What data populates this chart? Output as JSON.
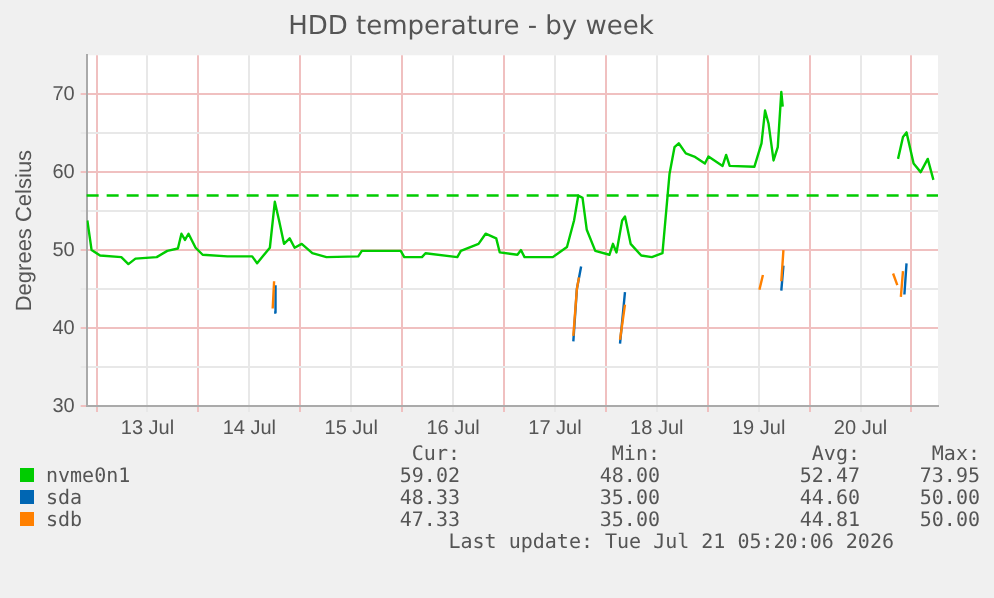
{
  "chart_data": {
    "type": "line",
    "title": "HDD temperature - by week",
    "ylabel": "Degrees Celsius",
    "xlim": [
      "2026-07-12T21:40",
      "2026-07-21T06:15"
    ],
    "xticks": [
      {
        "value": "2026-07-13T00:00",
        "label": null
      },
      {
        "value": "2026-07-13T12:00",
        "label": "13 Jul"
      },
      {
        "value": "2026-07-14T00:00",
        "label": null
      },
      {
        "value": "2026-07-14T12:00",
        "label": "14 Jul"
      },
      {
        "value": "2026-07-15T00:00",
        "label": null
      },
      {
        "value": "2026-07-15T12:00",
        "label": "15 Jul"
      },
      {
        "value": "2026-07-16T00:00",
        "label": null
      },
      {
        "value": "2026-07-16T12:00",
        "label": "16 Jul"
      },
      {
        "value": "2026-07-17T00:00",
        "label": null
      },
      {
        "value": "2026-07-17T12:00",
        "label": "17 Jul"
      },
      {
        "value": "2026-07-18T00:00",
        "label": null
      },
      {
        "value": "2026-07-18T12:00",
        "label": "18 Jul"
      },
      {
        "value": "2026-07-19T00:00",
        "label": null
      },
      {
        "value": "2026-07-19T12:00",
        "label": "19 Jul"
      },
      {
        "value": "2026-07-20T00:00",
        "label": null
      },
      {
        "value": "2026-07-20T12:00",
        "label": "20 Jul"
      },
      {
        "value": "2026-07-21T00:00",
        "label": null
      }
    ],
    "ylim": [
      30,
      75
    ],
    "yticks": [
      30,
      {
        "value": 35,
        "label": null
      },
      40,
      {
        "value": 45,
        "label": null
      },
      50,
      {
        "value": 55,
        "label": null
      },
      60,
      {
        "value": 65,
        "label": null
      },
      70
    ],
    "grid": true,
    "legend": "bottom",
    "marker": "none",
    "line_style": "solid",
    "ref_lines": [
      {
        "axis": "y",
        "value": 57,
        "color": "#00cc00",
        "line_style": "dashed"
      }
    ],
    "series": [
      {
        "name": "nvme0n1",
        "color": "#00cc00",
        "x": [
          "2026-07-12T21:50",
          "2026-07-12T22:50",
          "2026-07-13T00:50",
          "2026-07-13T05:50",
          "2026-07-13T07:30",
          "2026-07-13T09:10",
          "2026-07-13T14:10",
          "2026-07-13T16:40",
          "2026-07-13T19:10",
          "2026-07-13T20:00",
          "2026-07-13T20:50",
          "2026-07-13T21:40",
          "2026-07-13T23:20",
          "2026-07-14T01:00",
          "2026-07-14T06:50",
          "2026-07-14T12:40",
          "2026-07-14T13:50",
          "2026-07-14T15:10",
          "2026-07-14T16:50",
          "2026-07-14T18:00",
          "2026-07-14T19:00",
          "2026-07-14T20:10",
          "2026-07-14T21:30",
          "2026-07-14T22:40",
          "2026-07-15T00:20",
          "2026-07-15T02:50",
          "2026-07-15T06:10",
          "2026-07-15T13:40",
          "2026-07-15T14:30",
          "2026-07-15T23:40",
          "2026-07-16T00:30",
          "2026-07-16T04:40",
          "2026-07-16T05:30",
          "2026-07-16T13:00",
          "2026-07-16T13:50",
          "2026-07-16T18:00",
          "2026-07-16T19:40",
          "2026-07-16T22:10",
          "2026-07-16T23:00",
          "2026-07-17T03:10",
          "2026-07-17T04:00",
          "2026-07-17T04:50",
          "2026-07-17T11:30",
          "2026-07-17T14:50",
          "2026-07-17T16:30",
          "2026-07-17T17:30",
          "2026-07-17T18:30",
          "2026-07-17T19:30",
          "2026-07-17T21:30",
          "2026-07-18T00:50",
          "2026-07-18T01:40",
          "2026-07-18T02:30",
          "2026-07-18T03:50",
          "2026-07-18T04:30",
          "2026-07-18T05:50",
          "2026-07-18T08:20",
          "2026-07-18T10:50",
          "2026-07-18T13:20",
          "2026-07-18T15:00",
          "2026-07-18T16:10",
          "2026-07-18T17:10",
          "2026-07-18T18:50",
          "2026-07-18T20:50",
          "2026-07-18T23:20",
          "2026-07-19T00:10",
          "2026-07-19T03:30",
          "2026-07-19T04:20",
          "2026-07-19T05:10",
          "2026-07-19T11:00",
          "2026-07-19T12:40",
          "2026-07-19T13:30",
          "2026-07-19T14:20",
          "2026-07-19T15:30",
          "2026-07-19T16:30",
          "2026-07-19T17:20",
          "2026-07-19T17:40",
          "2026-07-19T20:00",
          "2026-07-20T20:50",
          "2026-07-20T22:00",
          "2026-07-20T22:50",
          "2026-07-21T00:30",
          "2026-07-21T02:10",
          "2026-07-21T03:50",
          "2026-07-21T05:10"
        ],
        "values": [
          53.8,
          50,
          49.3,
          49.1,
          48.2,
          48.9,
          49.1,
          49.9,
          50.2,
          52.1,
          51.3,
          52.1,
          50.3,
          49.4,
          49.2,
          49.2,
          48.3,
          49.2,
          50.3,
          56.2,
          53.8,
          50.8,
          51.5,
          50.3,
          50.8,
          49.6,
          49.1,
          49.2,
          49.9,
          49.9,
          49.1,
          49.1,
          49.6,
          49.1,
          49.9,
          50.8,
          52.1,
          51.5,
          49.7,
          49.4,
          50,
          49.1,
          49.1,
          50.4,
          53.8,
          57,
          56.7,
          52.6,
          49.9,
          49.4,
          50.8,
          49.7,
          53.8,
          54.3,
          50.8,
          49.3,
          49.1,
          49.6,
          59.8,
          63.2,
          63.7,
          62.4,
          62,
          61.1,
          62,
          60.8,
          62.2,
          60.8,
          60.7,
          63.7,
          67.9,
          66.2,
          61.5,
          63.2,
          70.3,
          68.4,
          null,
          61.7,
          64.5,
          65.1,
          61.1,
          60,
          61.7,
          59
        ]
      },
      {
        "name": "sda",
        "color": "#0066b3",
        "x": [
          "2026-07-14T17:50",
          "2026-07-14T18:10",
          "2026-07-15T12:00",
          "2026-07-17T16:20",
          "2026-07-17T17:10",
          "2026-07-17T18:10",
          "2026-07-17T23:00",
          "2026-07-18T03:20",
          "2026-07-18T04:30",
          "2026-07-18T12:00",
          "2026-07-19T17:20",
          "2026-07-19T17:50",
          "2026-07-20T12:00",
          "2026-07-20T22:20",
          "2026-07-20T22:50"
        ],
        "values": [
          42,
          45.5,
          null,
          38.3,
          45,
          47.9,
          null,
          38,
          44.6,
          null,
          44.8,
          48,
          null,
          44.3,
          48.3
        ]
      },
      {
        "name": "sdb",
        "color": "#ff8000",
        "x": [
          "2026-07-14T17:30",
          "2026-07-14T17:50",
          "2026-07-15T12:00",
          "2026-07-17T16:20",
          "2026-07-17T17:10",
          "2026-07-17T17:40",
          "2026-07-17T23:00",
          "2026-07-18T03:20",
          "2026-07-18T04:30",
          "2026-07-18T12:00",
          "2026-07-19T12:10",
          "2026-07-19T13:00",
          "2026-07-19T15:00",
          "2026-07-19T17:20",
          "2026-07-19T17:50",
          "2026-07-20T12:00",
          "2026-07-20T19:40",
          "2026-07-20T20:40",
          "2026-07-20T21:10",
          "2026-07-20T21:30",
          "2026-07-20T22:00"
        ],
        "values": [
          42.5,
          46,
          null,
          39,
          45,
          46.5,
          null,
          38.5,
          43,
          null,
          44.9,
          46.8,
          null,
          46,
          50,
          null,
          47,
          45.5,
          null,
          44,
          47.3
        ]
      }
    ],
    "annotations": [
      "Cur:",
      "Min:",
      "Avg:",
      "Max:",
      "59.02",
      "48.00",
      "52.47",
      "73.95",
      "48.33",
      "35.00",
      "44.60",
      "50.00",
      "47.33",
      "35.00",
      "44.81",
      "50.00",
      "Last update: Tue Jul 21 05:20:06 2026"
    ]
  }
}
